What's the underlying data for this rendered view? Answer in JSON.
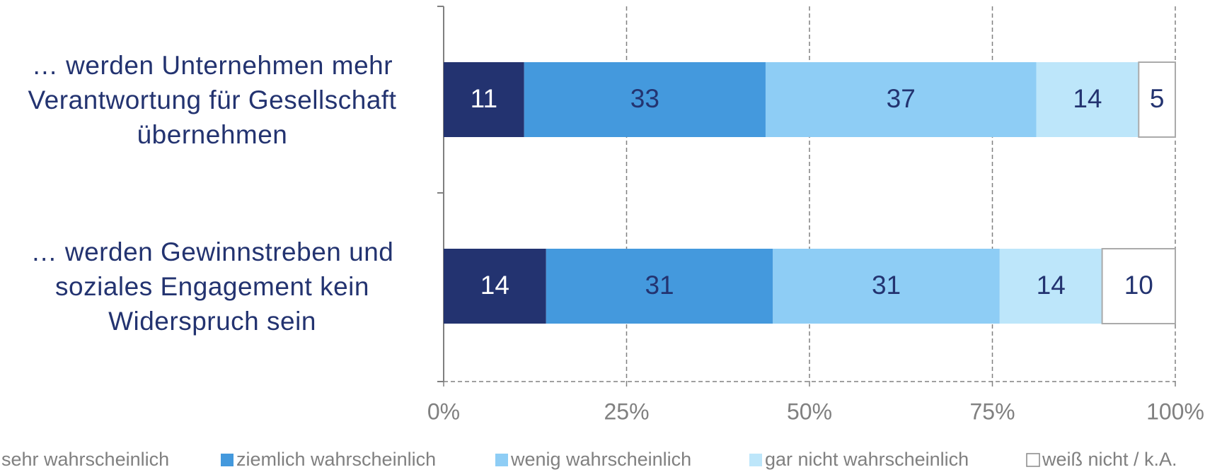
{
  "chart_data": {
    "type": "stacked_bar_horizontal",
    "categories": [
      "… werden Unternehmen mehr\nVerantwortung für Gesellschaft\nübernehmen",
      "… werden Gewinnstreben und\nsoziales Engagement kein\nWiderspruch sein"
    ],
    "series": [
      {
        "name": "sehr wahrscheinlich",
        "color": "#233370",
        "values": [
          11,
          14
        ]
      },
      {
        "name": "ziemlich wahrscheinlich",
        "color": "#4499dd",
        "values": [
          33,
          31
        ]
      },
      {
        "name": "wenig wahrscheinlich",
        "color": "#8ecdf5",
        "values": [
          37,
          31
        ]
      },
      {
        "name": "gar nicht wahrscheinlich",
        "color": "#bde6fa",
        "values": [
          14,
          14
        ]
      },
      {
        "name": "weiß nicht / k.A.",
        "color": "#ffffff",
        "values": [
          5,
          10
        ]
      }
    ],
    "xlim": [
      0,
      100
    ],
    "xticks": [
      {
        "value": 0,
        "label": "0%"
      },
      {
        "value": 25,
        "label": "25%"
      },
      {
        "value": 50,
        "label": "50%"
      },
      {
        "value": 75,
        "label": "75%"
      },
      {
        "value": 100,
        "label": "100%"
      }
    ],
    "grid": true,
    "legend": "bottom"
  }
}
